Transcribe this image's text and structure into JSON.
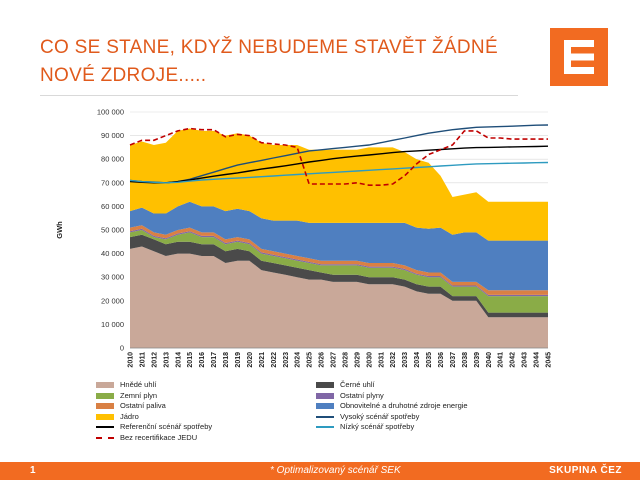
{
  "slide": {
    "title": "CO SE STANE, KDYŽ NEBUDEME STAVĚT ŽÁDNÉ NOVÉ ZDROJE.....",
    "page_number": "1",
    "footnote": "* Optimalizovaný scénář SEK",
    "brand": "SKUPINA ČEZ",
    "accent_color": "#f26b21",
    "title_color": "#e05a1c"
  },
  "chart_data": {
    "type": "area",
    "title": "",
    "xlabel": "",
    "ylabel": "GWh",
    "ylim": [
      0,
      100000
    ],
    "yticks": [
      0,
      10000,
      20000,
      30000,
      40000,
      50000,
      60000,
      70000,
      80000,
      90000,
      100000
    ],
    "ytick_labels": [
      "0",
      "10 000",
      "20 000",
      "30 000",
      "40 000",
      "50 000",
      "60 000",
      "70 000",
      "80 000",
      "90 000",
      "100 000"
    ],
    "grid": true,
    "legend_position": "bottom",
    "x": [
      2010,
      2011,
      2012,
      2013,
      2014,
      2015,
      2016,
      2017,
      2018,
      2019,
      2020,
      2021,
      2022,
      2023,
      2024,
      2025,
      2026,
      2027,
      2028,
      2029,
      2030,
      2031,
      2032,
      2033,
      2034,
      2035,
      2036,
      2037,
      2038,
      2039,
      2040,
      2041,
      2042,
      2043,
      2044,
      2045
    ],
    "stacked_series": [
      {
        "name": "Hnědé uhlí",
        "color": "#c9a899",
        "values": [
          42000,
          43000,
          41000,
          39000,
          40000,
          40000,
          39000,
          39000,
          36000,
          37000,
          37000,
          33000,
          32000,
          31000,
          30000,
          29000,
          29000,
          28000,
          28000,
          28000,
          27000,
          27000,
          27000,
          26000,
          24000,
          23000,
          23000,
          20000,
          20000,
          20000,
          13000,
          13000,
          13000,
          13000,
          13000,
          13000
        ]
      },
      {
        "name": "Černé uhlí",
        "color": "#4a4a4a",
        "values": [
          5000,
          5000,
          5000,
          5000,
          5000,
          5000,
          5000,
          5000,
          5000,
          5000,
          4000,
          4000,
          4000,
          4000,
          4000,
          4000,
          3000,
          3000,
          3000,
          3000,
          3000,
          3000,
          3000,
          3000,
          3000,
          3000,
          3000,
          2000,
          2000,
          2000,
          2000,
          2000,
          2000,
          2000,
          2000,
          2000
        ]
      },
      {
        "name": "Zemní plyn",
        "color": "#8aac47",
        "values": [
          2000,
          2000,
          1000,
          2000,
          3000,
          4000,
          3000,
          3000,
          3000,
          3000,
          3000,
          3000,
          3000,
          3000,
          3000,
          3000,
          3000,
          4000,
          4000,
          4000,
          4000,
          4000,
          4000,
          4000,
          4000,
          4000,
          4000,
          4000,
          4000,
          4000,
          7000,
          7000,
          7000,
          7000,
          7000,
          7000
        ]
      },
      {
        "name": "Ostatní plyny",
        "color": "#8067a6",
        "values": [
          500,
          500,
          500,
          500,
          500,
          500,
          500,
          500,
          500,
          500,
          500,
          500,
          500,
          500,
          500,
          500,
          500,
          500,
          500,
          500,
          500,
          500,
          500,
          500,
          500,
          500,
          500,
          500,
          500,
          500,
          500,
          500,
          500,
          500,
          500,
          500
        ]
      },
      {
        "name": "Ostatní paliva",
        "color": "#d98044",
        "values": [
          1500,
          1500,
          1500,
          1500,
          1500,
          1500,
          1500,
          1500,
          1500,
          1500,
          1500,
          1500,
          1500,
          1500,
          1500,
          1500,
          1500,
          1500,
          1500,
          1500,
          1500,
          1500,
          1500,
          1500,
          1500,
          1500,
          1500,
          1500,
          1500,
          1500,
          2000,
          2000,
          2000,
          2000,
          2000,
          2000
        ]
      },
      {
        "name": "Obnovitelné a druhotné zdroje energie",
        "color": "#4f7fc0",
        "values": [
          7000,
          7500,
          8000,
          9000,
          10000,
          11000,
          11000,
          11000,
          12000,
          12000,
          12000,
          13000,
          13000,
          14000,
          15000,
          15000,
          16000,
          16000,
          16000,
          16000,
          17000,
          17000,
          17000,
          18000,
          18000,
          18500,
          19000,
          20000,
          21000,
          21000,
          21000,
          21000,
          21000,
          21000,
          21000,
          21000
        ]
      },
      {
        "name": "Jádro",
        "color": "#ffc000",
        "values": [
          28000,
          28000,
          29000,
          30000,
          32000,
          31000,
          32000,
          32000,
          32000,
          32000,
          32000,
          32000,
          32000,
          32000,
          32000,
          31000,
          31000,
          31000,
          31000,
          31000,
          32000,
          32000,
          32000,
          30000,
          29000,
          28000,
          22000,
          16000,
          16000,
          17000,
          16500,
          16500,
          16500,
          16500,
          16500,
          16500
        ]
      }
    ],
    "line_series": [
      {
        "name": "Vysoký scénář spotřeby",
        "color": "#1f4e79",
        "dashed": false,
        "values": [
          71000,
          70500,
          70300,
          70000,
          70500,
          71500,
          73000,
          74500,
          76000,
          77500,
          78500,
          79500,
          80500,
          81500,
          82500,
          83500,
          84000,
          84500,
          85000,
          85500,
          86000,
          87000,
          88000,
          89000,
          90000,
          91000,
          91800,
          92500,
          93000,
          93500,
          93700,
          93800,
          94000,
          94200,
          94400,
          94500
        ]
      },
      {
        "name": "Referenční scénář spotřeby",
        "color": "#000000",
        "dashed": false,
        "values": [
          70500,
          70200,
          70000,
          70000,
          70500,
          71200,
          72000,
          72800,
          73500,
          74200,
          75000,
          75800,
          76500,
          77200,
          78000,
          78800,
          79500,
          80200,
          80800,
          81300,
          81800,
          82300,
          82800,
          83200,
          83500,
          83800,
          84100,
          84400,
          84700,
          84900,
          85000,
          85100,
          85200,
          85300,
          85400,
          85500
        ]
      },
      {
        "name": "Nízký scénář spotřeby",
        "color": "#2e9bc0",
        "dashed": false,
        "values": [
          71000,
          70500,
          70200,
          70000,
          70200,
          70700,
          71200,
          71500,
          71800,
          72000,
          72300,
          72600,
          72900,
          73200,
          73500,
          73800,
          74100,
          74400,
          74700,
          75000,
          75300,
          75600,
          75900,
          76200,
          76500,
          76800,
          77100,
          77400,
          77700,
          78000,
          78100,
          78200,
          78300,
          78400,
          78500,
          78600
        ]
      },
      {
        "name": "Bez recertifikace JEDU",
        "color": "#c00000",
        "dashed": true,
        "values": [
          86000,
          88000,
          88000,
          90000,
          92000,
          93000,
          92500,
          92500,
          89500,
          90500,
          90000,
          87000,
          86500,
          86000,
          85000,
          69500,
          69500,
          69500,
          69500,
          70000,
          69000,
          69000,
          69500,
          73000,
          78000,
          82000,
          84000,
          86000,
          92000,
          92000,
          89000,
          89000,
          88500,
          88500,
          88500,
          88500
        ]
      }
    ]
  }
}
